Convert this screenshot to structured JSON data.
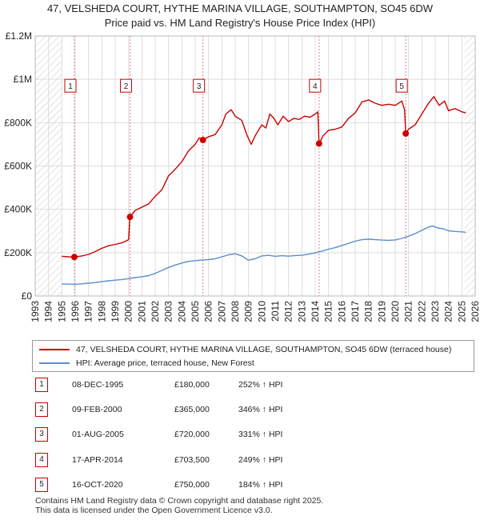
{
  "title_line1": "47, VELSHEDA COURT, HYTHE MARINA VILLAGE, SOUTHAMPTON, SO45 6DW",
  "title_line2": "Price paid vs. HM Land Registry's House Price Index (HPI)",
  "colors": {
    "property": "#cc0000",
    "hpi": "#5b8fcc",
    "grid": "#dddddd",
    "vline": "#e08080"
  },
  "legend": {
    "property_label": "47, VELSHEDA COURT, HYTHE MARINA VILLAGE, SOUTHAMPTON, SO45 6DW (terraced house)",
    "hpi_label": "HPI: Average price, terraced house, New Forest"
  },
  "sales": [
    {
      "num": "1",
      "date": "08-DEC-1995",
      "price": "£180,000",
      "hpi": "252% ↑ HPI"
    },
    {
      "num": "2",
      "date": "09-FEB-2000",
      "price": "£365,000",
      "hpi": "346% ↑ HPI"
    },
    {
      "num": "3",
      "date": "01-AUG-2005",
      "price": "£720,000",
      "hpi": "331% ↑ HPI"
    },
    {
      "num": "4",
      "date": "17-APR-2014",
      "price": "£703,500",
      "hpi": "249% ↑ HPI"
    },
    {
      "num": "5",
      "date": "16-OCT-2020",
      "price": "£750,000",
      "hpi": "184% ↑ HPI"
    }
  ],
  "footer": {
    "line1": "Contains HM Land Registry data © Crown copyright and database right 2025.",
    "line2": "This data is licensed under the Open Government Licence v3.0."
  },
  "chart_data": {
    "type": "line",
    "title": "Price paid vs. HM Land Registry's House Price Index (HPI)",
    "xlabel": "",
    "ylabel": "",
    "xlim": [
      1993,
      2026
    ],
    "ylim": [
      0,
      1200000
    ],
    "x_ticks": [
      1993,
      1994,
      1995,
      1996,
      1997,
      1998,
      1999,
      2000,
      2001,
      2002,
      2003,
      2004,
      2005,
      2006,
      2007,
      2008,
      2009,
      2010,
      2011,
      2012,
      2013,
      2014,
      2015,
      2016,
      2017,
      2018,
      2019,
      2020,
      2021,
      2022,
      2023,
      2024,
      2025,
      2026
    ],
    "y_ticks": [
      {
        "value": 0,
        "label": "£0"
      },
      {
        "value": 200000,
        "label": "£200K"
      },
      {
        "value": 400000,
        "label": "£400K"
      },
      {
        "value": 600000,
        "label": "£600K"
      },
      {
        "value": 800000,
        "label": "£800K"
      },
      {
        "value": 1000000,
        "label": "£1M"
      },
      {
        "value": 1200000,
        "label": "£1.2M"
      }
    ],
    "hatched_ranges": [
      [
        1993,
        1995.0
      ],
      [
        2025.2,
        2026
      ]
    ],
    "sale_points": [
      {
        "label": "1",
        "x": 1995.94,
        "y": 180000
      },
      {
        "label": "2",
        "x": 2000.11,
        "y": 365000
      },
      {
        "label": "3",
        "x": 2005.58,
        "y": 720000
      },
      {
        "label": "4",
        "x": 2014.29,
        "y": 703500
      },
      {
        "label": "5",
        "x": 2020.79,
        "y": 750000
      }
    ],
    "series": [
      {
        "name": "47, VELSHEDA COURT, HYTHE MARINA VILLAGE, SOUTHAMPTON, SO45 6DW (terraced house)",
        "points": [
          [
            1995.0,
            183000
          ],
          [
            1995.5,
            181000
          ],
          [
            1995.94,
            180000
          ],
          [
            1996.5,
            185000
          ],
          [
            1997.0,
            192000
          ],
          [
            1997.5,
            205000
          ],
          [
            1998.0,
            220000
          ],
          [
            1998.5,
            232000
          ],
          [
            1999.0,
            238000
          ],
          [
            1999.5,
            245000
          ],
          [
            2000.0,
            260000
          ],
          [
            2000.11,
            365000
          ],
          [
            2000.5,
            395000
          ],
          [
            2001.0,
            410000
          ],
          [
            2001.5,
            425000
          ],
          [
            2002.0,
            460000
          ],
          [
            2002.5,
            490000
          ],
          [
            2003.0,
            555000
          ],
          [
            2003.5,
            585000
          ],
          [
            2004.0,
            620000
          ],
          [
            2004.5,
            670000
          ],
          [
            2005.0,
            700000
          ],
          [
            2005.3,
            730000
          ],
          [
            2005.58,
            720000
          ],
          [
            2006.0,
            735000
          ],
          [
            2006.5,
            745000
          ],
          [
            2007.0,
            790000
          ],
          [
            2007.3,
            840000
          ],
          [
            2007.7,
            860000
          ],
          [
            2008.0,
            830000
          ],
          [
            2008.5,
            810000
          ],
          [
            2008.9,
            740000
          ],
          [
            2009.2,
            700000
          ],
          [
            2009.5,
            740000
          ],
          [
            2010.0,
            790000
          ],
          [
            2010.3,
            775000
          ],
          [
            2010.6,
            840000
          ],
          [
            2010.9,
            820000
          ],
          [
            2011.2,
            790000
          ],
          [
            2011.6,
            830000
          ],
          [
            2012.0,
            805000
          ],
          [
            2012.4,
            820000
          ],
          [
            2012.8,
            815000
          ],
          [
            2013.2,
            830000
          ],
          [
            2013.6,
            825000
          ],
          [
            2014.0,
            840000
          ],
          [
            2014.2,
            850000
          ],
          [
            2014.29,
            703500
          ],
          [
            2014.6,
            740000
          ],
          [
            2015.0,
            765000
          ],
          [
            2015.5,
            770000
          ],
          [
            2016.0,
            780000
          ],
          [
            2016.5,
            820000
          ],
          [
            2017.0,
            845000
          ],
          [
            2017.5,
            895000
          ],
          [
            2018.0,
            905000
          ],
          [
            2018.5,
            890000
          ],
          [
            2019.0,
            880000
          ],
          [
            2019.5,
            885000
          ],
          [
            2020.0,
            880000
          ],
          [
            2020.5,
            900000
          ],
          [
            2020.7,
            860000
          ],
          [
            2020.79,
            750000
          ],
          [
            2021.0,
            770000
          ],
          [
            2021.5,
            790000
          ],
          [
            2022.0,
            840000
          ],
          [
            2022.5,
            890000
          ],
          [
            2022.9,
            920000
          ],
          [
            2023.3,
            880000
          ],
          [
            2023.7,
            900000
          ],
          [
            2024.0,
            855000
          ],
          [
            2024.5,
            865000
          ],
          [
            2025.0,
            850000
          ],
          [
            2025.3,
            845000
          ]
        ]
      },
      {
        "name": "HPI: Average price, terraced house, New Forest",
        "points": [
          [
            1995.0,
            55000
          ],
          [
            1995.5,
            55000
          ],
          [
            1996.0,
            54000
          ],
          [
            1996.5,
            56000
          ],
          [
            1997.0,
            59000
          ],
          [
            1997.5,
            62000
          ],
          [
            1998.0,
            66000
          ],
          [
            1998.5,
            70000
          ],
          [
            1999.0,
            73000
          ],
          [
            1999.5,
            76000
          ],
          [
            2000.0,
            80000
          ],
          [
            2000.5,
            85000
          ],
          [
            2001.0,
            89000
          ],
          [
            2001.5,
            94000
          ],
          [
            2002.0,
            104000
          ],
          [
            2002.5,
            118000
          ],
          [
            2003.0,
            132000
          ],
          [
            2003.5,
            143000
          ],
          [
            2004.0,
            152000
          ],
          [
            2004.5,
            160000
          ],
          [
            2005.0,
            163000
          ],
          [
            2005.5,
            166000
          ],
          [
            2006.0,
            168000
          ],
          [
            2006.5,
            172000
          ],
          [
            2007.0,
            181000
          ],
          [
            2007.5,
            190000
          ],
          [
            2008.0,
            195000
          ],
          [
            2008.5,
            185000
          ],
          [
            2009.0,
            165000
          ],
          [
            2009.5,
            172000
          ],
          [
            2010.0,
            185000
          ],
          [
            2010.5,
            188000
          ],
          [
            2011.0,
            183000
          ],
          [
            2011.5,
            186000
          ],
          [
            2012.0,
            184000
          ],
          [
            2012.5,
            187000
          ],
          [
            2013.0,
            188000
          ],
          [
            2013.5,
            193000
          ],
          [
            2014.0,
            199000
          ],
          [
            2014.5,
            207000
          ],
          [
            2015.0,
            216000
          ],
          [
            2015.5,
            223000
          ],
          [
            2016.0,
            233000
          ],
          [
            2016.5,
            243000
          ],
          [
            2017.0,
            253000
          ],
          [
            2017.5,
            260000
          ],
          [
            2018.0,
            262000
          ],
          [
            2018.5,
            260000
          ],
          [
            2019.0,
            258000
          ],
          [
            2019.5,
            257000
          ],
          [
            2020.0,
            259000
          ],
          [
            2020.5,
            266000
          ],
          [
            2021.0,
            276000
          ],
          [
            2021.5,
            288000
          ],
          [
            2022.0,
            303000
          ],
          [
            2022.5,
            318000
          ],
          [
            2022.8,
            324000
          ],
          [
            2023.2,
            314000
          ],
          [
            2023.6,
            310000
          ],
          [
            2024.0,
            301000
          ],
          [
            2024.5,
            298000
          ],
          [
            2025.0,
            296000
          ],
          [
            2025.3,
            294000
          ]
        ]
      }
    ]
  }
}
